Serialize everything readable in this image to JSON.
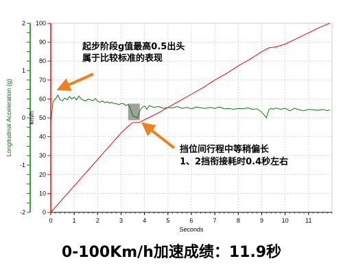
{
  "chart_data": {
    "type": "line",
    "xlabel": "Seconds",
    "xlim": [
      0,
      12
    ],
    "x_ticks": [
      0,
      1,
      2,
      3,
      4,
      5,
      6,
      7,
      8,
      9,
      10,
      11
    ],
    "y_axes": {
      "acceleration": {
        "label": "Longitudinal Acceleration (g)",
        "ylim": [
          -2,
          2
        ],
        "ticks": [
          "-2",
          "-1.8",
          "-1.6",
          "-1.4",
          "-1.2",
          "-1",
          "-0.8",
          "-0.6",
          "-0.4",
          "-0.2",
          "0",
          "0.2",
          "0.4",
          "0.6",
          "0.8",
          "1",
          "1.2",
          "1.4",
          "1.6",
          "1.8",
          "2"
        ],
        "color": "#008000"
      },
      "speed": {
        "label": "km/h",
        "ylim": [
          0,
          100
        ],
        "ticks": [
          "0",
          "10",
          "20",
          "30",
          "40",
          "50",
          "60",
          "70",
          "80",
          "90",
          "100"
        ],
        "color": "#ff0000"
      }
    },
    "grid": true,
    "series": [
      {
        "axis": "speed",
        "color": "#ff0000",
        "x": [
          0,
          0.25,
          0.5,
          0.75,
          1,
          1.25,
          1.5,
          1.75,
          2,
          2.25,
          2.5,
          2.75,
          3,
          3.25,
          3.5,
          3.75,
          4,
          4.5,
          5,
          5.5,
          6,
          6.5,
          7,
          7.5,
          8,
          8.5,
          9,
          9.3,
          9.6,
          10,
          10.5,
          11,
          11.5,
          11.9
        ],
        "values": [
          0,
          3.5,
          7,
          10.5,
          14,
          17.5,
          21,
          24.5,
          28,
          31.5,
          35,
          38.5,
          42,
          45,
          47.5,
          47.5,
          49,
          52,
          55.5,
          59,
          62.5,
          66,
          70,
          73.5,
          77.5,
          81,
          85,
          87,
          87.5,
          89,
          92,
          95,
          98,
          100
        ]
      },
      {
        "axis": "acceleration",
        "color": "#008000",
        "x": [
          0,
          0.1,
          0.2,
          0.3,
          0.4,
          0.5,
          0.6,
          0.7,
          0.8,
          0.9,
          1,
          1.1,
          1.2,
          1.3,
          1.4,
          1.5,
          1.6,
          1.7,
          1.8,
          1.9,
          2,
          2.1,
          2.2,
          2.3,
          2.4,
          2.5,
          2.6,
          2.7,
          2.8,
          2.9,
          3,
          3.1,
          3.2,
          3.3,
          3.4,
          3.5,
          3.6,
          3.7,
          3.8,
          3.9,
          4,
          4.1,
          4.2,
          4.4,
          4.6,
          4.8,
          5,
          5.2,
          5.4,
          5.6,
          5.8,
          6,
          6.2,
          6.4,
          6.6,
          6.8,
          7,
          7.2,
          7.4,
          7.6,
          7.8,
          8,
          8.2,
          8.4,
          8.6,
          8.8,
          9,
          9.2,
          9.3,
          9.4,
          9.5,
          9.6,
          9.8,
          10,
          10.2,
          10.4,
          10.6,
          10.8,
          11,
          11.2,
          11.4,
          11.6,
          11.8,
          11.9
        ],
        "values": [
          -0.1,
          0.35,
          0.4,
          0.48,
          0.38,
          0.36,
          0.42,
          0.38,
          0.45,
          0.4,
          0.44,
          0.38,
          0.46,
          0.4,
          0.37,
          0.36,
          0.4,
          0.38,
          0.36,
          0.41,
          0.35,
          0.33,
          0.36,
          0.32,
          0.34,
          0.31,
          0.33,
          0.3,
          0.3,
          0.28,
          0.3,
          0.3,
          0.26,
          0.28,
          0.2,
          0.04,
          0.02,
          0.0,
          0.15,
          0.22,
          0.25,
          0.18,
          0.26,
          0.22,
          0.24,
          0.2,
          0.22,
          0.21,
          0.24,
          0.2,
          0.22,
          0.19,
          0.23,
          0.21,
          0.2,
          0.22,
          0.2,
          0.23,
          0.19,
          0.2,
          0.18,
          0.2,
          0.19,
          0.21,
          0.18,
          0.19,
          0.12,
          0.0,
          0.17,
          0.2,
          0.18,
          0.21,
          0.18,
          0.2,
          0.15,
          0.2,
          0.17,
          0.15,
          0.18,
          0.17,
          0.16,
          0.18,
          0.15,
          0.17
        ]
      }
    ],
    "annotations": [
      {
        "lines": [
          "起步阶段g值最高0.5出头",
          "属于比较标准的表现"
        ],
        "arrow_color": "#f07f1e"
      },
      {
        "lines": [
          "挡位间行程中等稍偏长",
          "1、2挡衔接耗时0.4秒左右"
        ],
        "arrow_color": "#f07f1e",
        "highlight_x": [
          3.3,
          3.8
        ]
      }
    ]
  },
  "caption": "0-100Km/h加速成绩：11.9秒"
}
